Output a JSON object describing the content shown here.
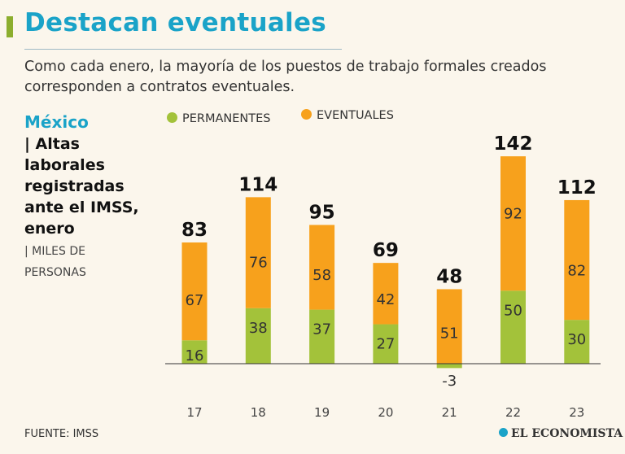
{
  "header": {
    "title": "Destacan eventuales",
    "subtitle": "Como cada enero, la mayoría de los puestos de trabajo formales creados corresponden a contratos eventuales."
  },
  "side": {
    "region": "México",
    "description": "| Altas laborales registradas ante el IMSS, enero",
    "unit": "| MILES DE PERSONAS"
  },
  "footer": {
    "source": "FUENTE: IMSS",
    "brand": "EL ECONOMISTA"
  },
  "colors": {
    "permanentes": "#a3c23a",
    "eventuales": "#f7a11c",
    "accent": "#1aa3c8"
  },
  "chart_data": {
    "type": "bar",
    "stacked": true,
    "categories": [
      "17",
      "18",
      "19",
      "20",
      "21",
      "22",
      "23"
    ],
    "series": [
      {
        "name": "PERMANENTES",
        "values": [
          16,
          38,
          37,
          27,
          -3,
          50,
          30
        ]
      },
      {
        "name": "EVENTUALES",
        "values": [
          67,
          76,
          58,
          42,
          51,
          92,
          82
        ]
      }
    ],
    "totals": [
      83,
      114,
      95,
      69,
      48,
      142,
      112
    ],
    "legend_position": "top",
    "grid": false
  }
}
